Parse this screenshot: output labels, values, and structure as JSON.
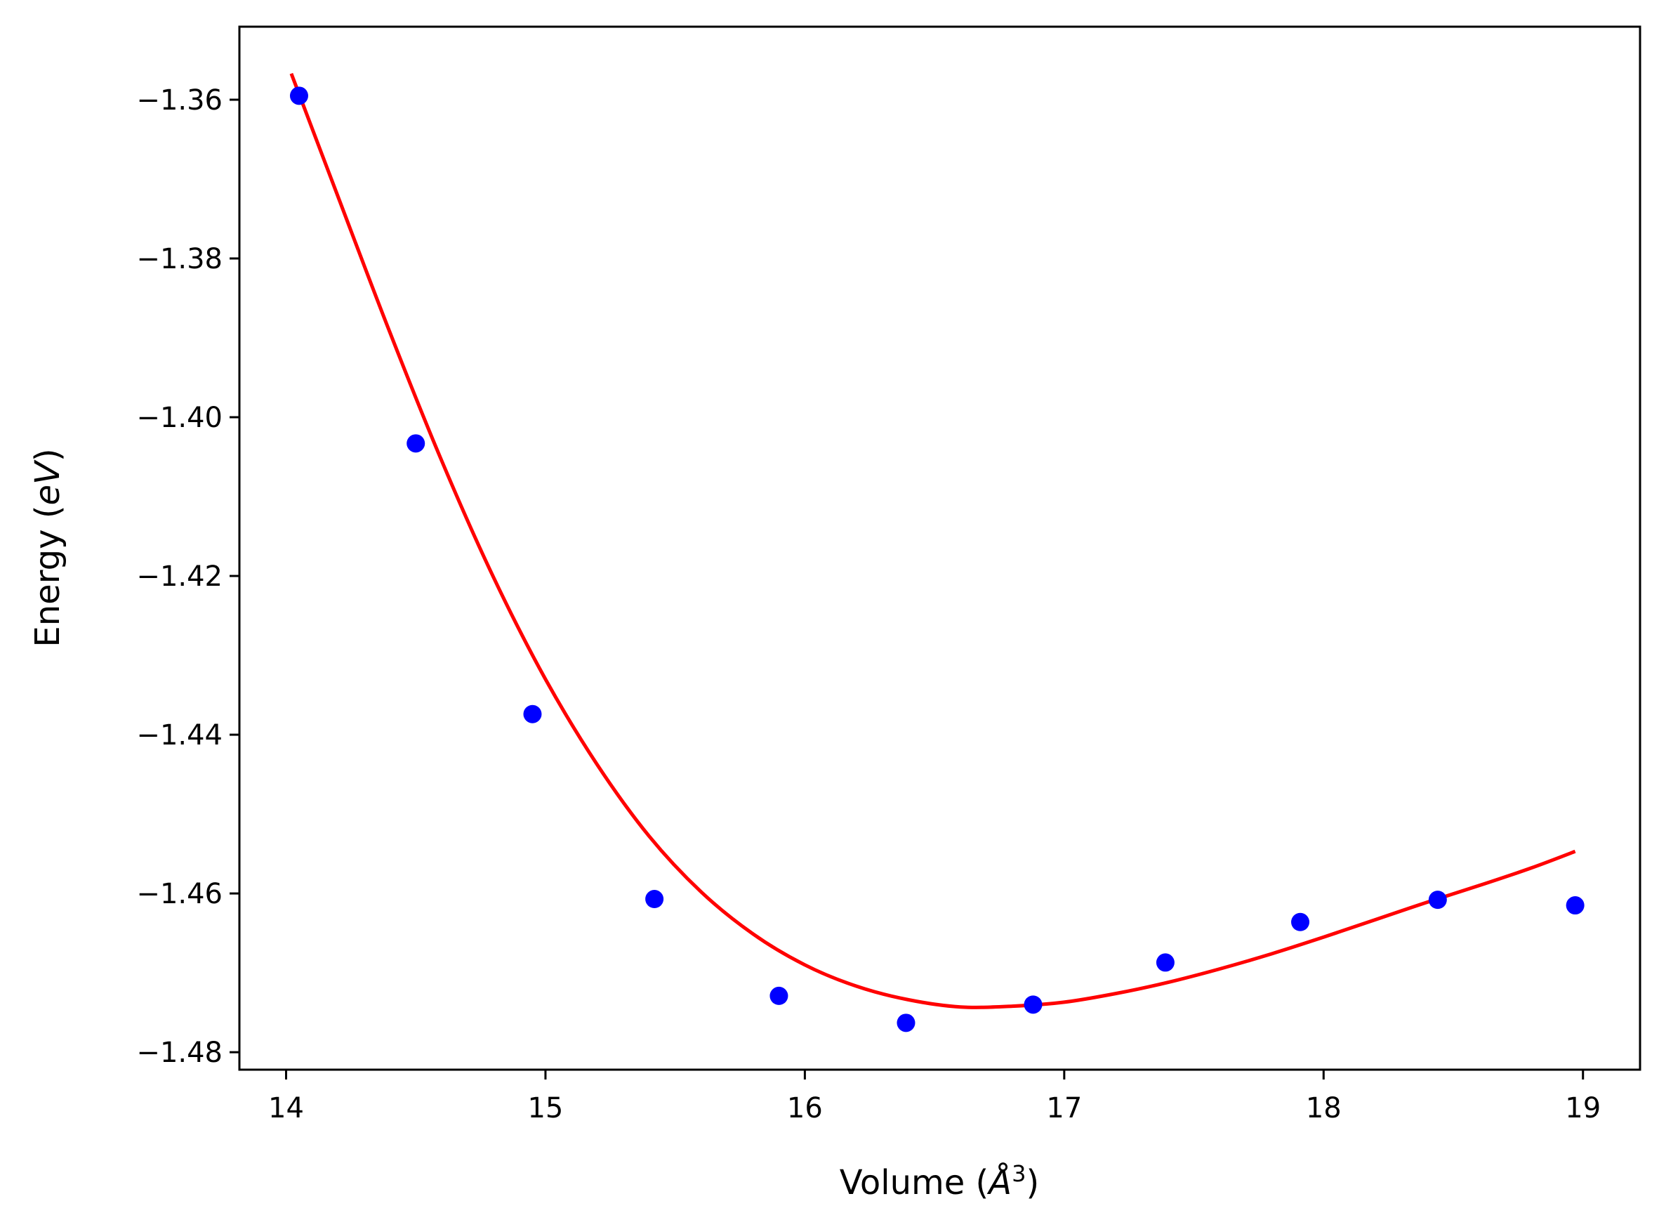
{
  "chart_data": {
    "type": "scatter",
    "title": "",
    "xlabel": {
      "prefix": "Volume (",
      "symbol": "Å",
      "superscript": "3",
      "suffix": ")"
    },
    "ylabel": {
      "prefix": "Energy (",
      "italic": "eV",
      "suffix": ")"
    },
    "xlim": [
      13.82,
      19.22
    ],
    "ylim": [
      -1.4822,
      -1.3508
    ],
    "x_ticks": [
      14,
      15,
      16,
      17,
      18,
      19
    ],
    "x_tick_labels": [
      "14",
      "15",
      "16",
      "17",
      "18",
      "19"
    ],
    "y_ticks": [
      -1.36,
      -1.38,
      -1.4,
      -1.42,
      -1.44,
      -1.46,
      -1.48
    ],
    "y_tick_labels": [
      "−1.36",
      "−1.38",
      "−1.40",
      "−1.42",
      "−1.44",
      "−1.46",
      "−1.48"
    ],
    "grid": false,
    "legend": "none",
    "series": [
      {
        "kind": "points",
        "color": "#0000ff",
        "x": [
          14.05,
          14.5,
          14.95,
          15.42,
          15.9,
          16.39,
          16.88,
          17.39,
          17.91,
          18.44,
          18.97
        ],
        "y": [
          -1.3595,
          -1.4033,
          -1.4374,
          -1.4607,
          -1.4729,
          -1.4763,
          -1.474,
          -1.4687,
          -1.4636,
          -1.4608,
          -1.4615
        ]
      },
      {
        "kind": "fit-line",
        "color": "#ff0000",
        "x": [
          14.02,
          14.2,
          14.4,
          14.6,
          14.8,
          15.0,
          15.2,
          15.4,
          15.6,
          15.8,
          16.0,
          16.2,
          16.4,
          16.6,
          16.8,
          17.0,
          17.2,
          17.4,
          17.6,
          17.8,
          18.0,
          18.2,
          18.4,
          18.6,
          18.8,
          18.97
        ],
        "y": [
          -1.3567,
          -1.3722,
          -1.3893,
          -1.4055,
          -1.4202,
          -1.433,
          -1.4438,
          -1.4528,
          -1.4598,
          -1.4651,
          -1.469,
          -1.4717,
          -1.4734,
          -1.4743,
          -1.4742,
          -1.4737,
          -1.4726,
          -1.4712,
          -1.4695,
          -1.4676,
          -1.4655,
          -1.4633,
          -1.4611,
          -1.459,
          -1.4568,
          -1.4547
        ]
      }
    ]
  }
}
